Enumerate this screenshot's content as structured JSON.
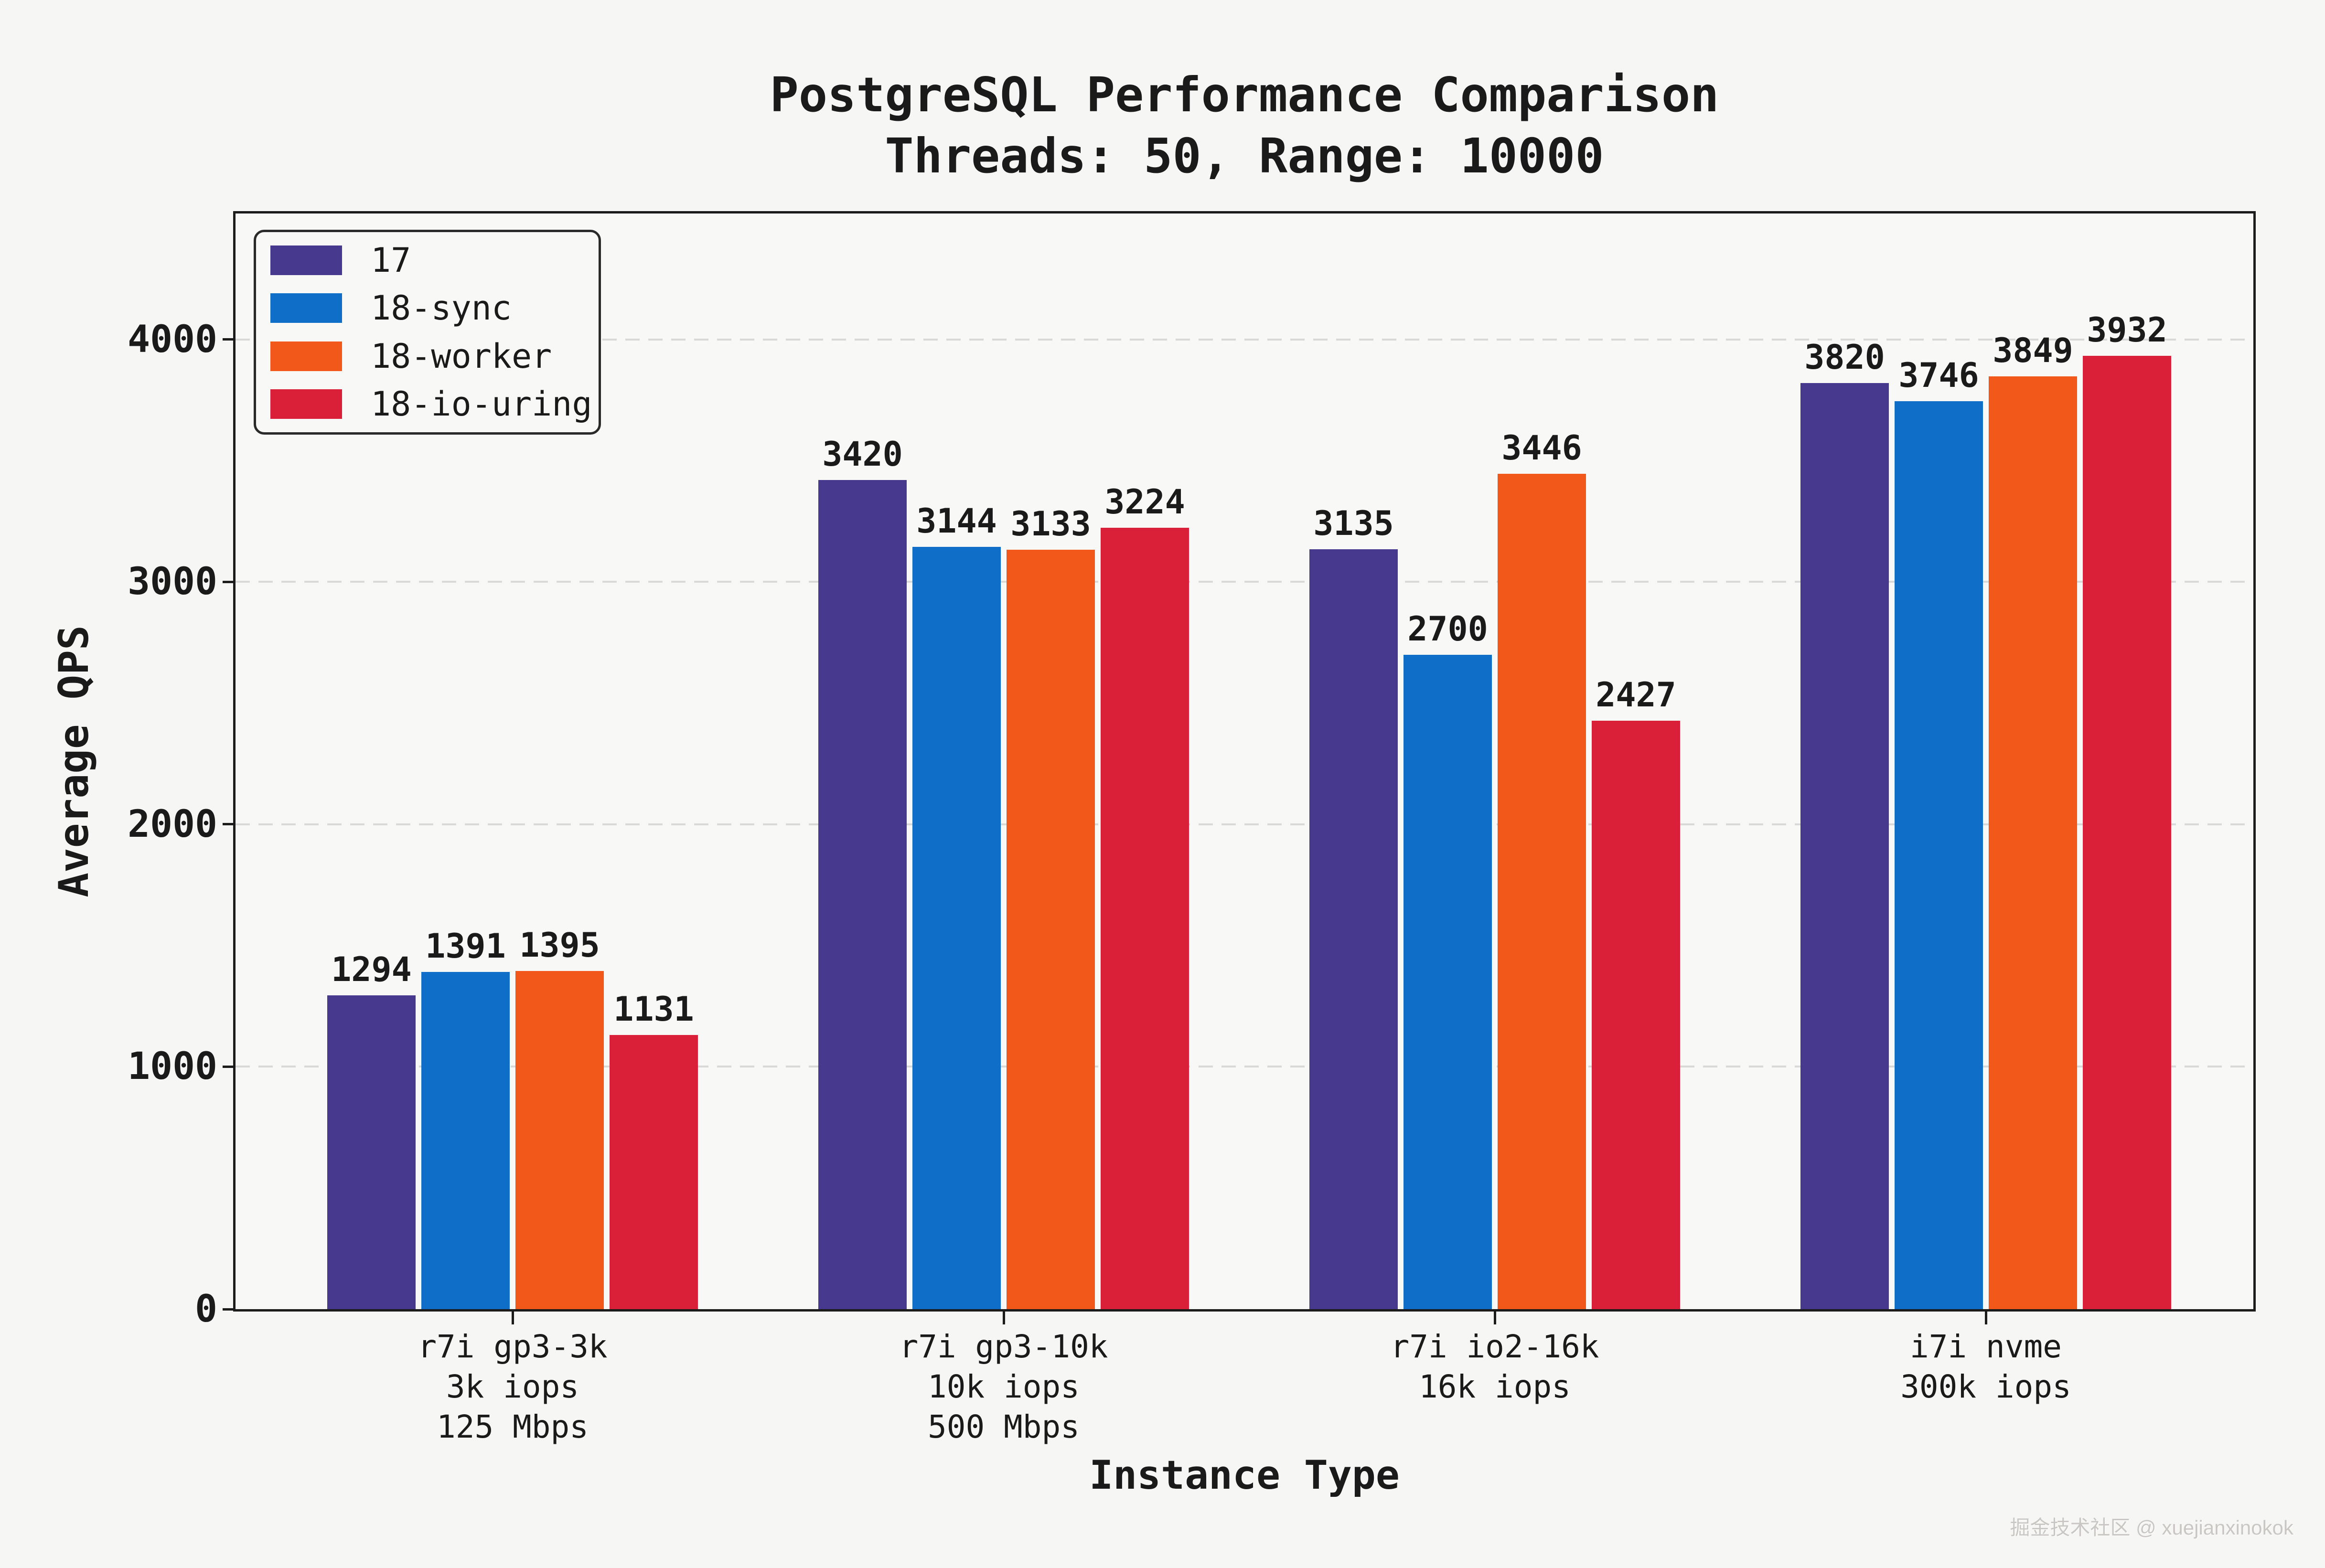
{
  "chart_data": {
    "type": "bar",
    "title": "PostgreSQL Performance Comparison",
    "subtitle": "Threads: 50, Range: 10000",
    "xlabel": "Instance Type",
    "ylabel": "Average QPS",
    "ylim": [
      0,
      4520
    ],
    "yticks": [
      0,
      1000,
      2000,
      3000,
      4000
    ],
    "grid": "horizontal-dashed",
    "legend_position": "upper-left",
    "categories": [
      [
        "r7i gp3-3k",
        "3k iops",
        "125 Mbps"
      ],
      [
        "r7i gp3-10k",
        "10k iops",
        "500 Mbps"
      ],
      [
        "r7i io2-16k",
        "16k iops"
      ],
      [
        "i7i nvme",
        "300k iops"
      ]
    ],
    "series": [
      {
        "name": "17",
        "color": "#473a8e",
        "values": [
          1294,
          3420,
          3135,
          3820
        ]
      },
      {
        "name": "18-sync",
        "color": "#0e6ec8",
        "values": [
          1391,
          3144,
          2700,
          3746
        ]
      },
      {
        "name": "18-worker",
        "color": "#f3581b",
        "values": [
          1395,
          3133,
          3446,
          3849
        ]
      },
      {
        "name": "18-io-uring",
        "color": "#da2038",
        "values": [
          1131,
          3224,
          2427,
          3932
        ]
      }
    ]
  },
  "watermark": "掘金技术社区 @ xuejianxinokok",
  "colors": {
    "background": "#f6f6f5",
    "plot_background": "#f8f8f7",
    "spine": "#1c1c1c",
    "grid": "#d9d9d9",
    "text": "#1a1a1a",
    "watermark": "#c9c6c3"
  }
}
